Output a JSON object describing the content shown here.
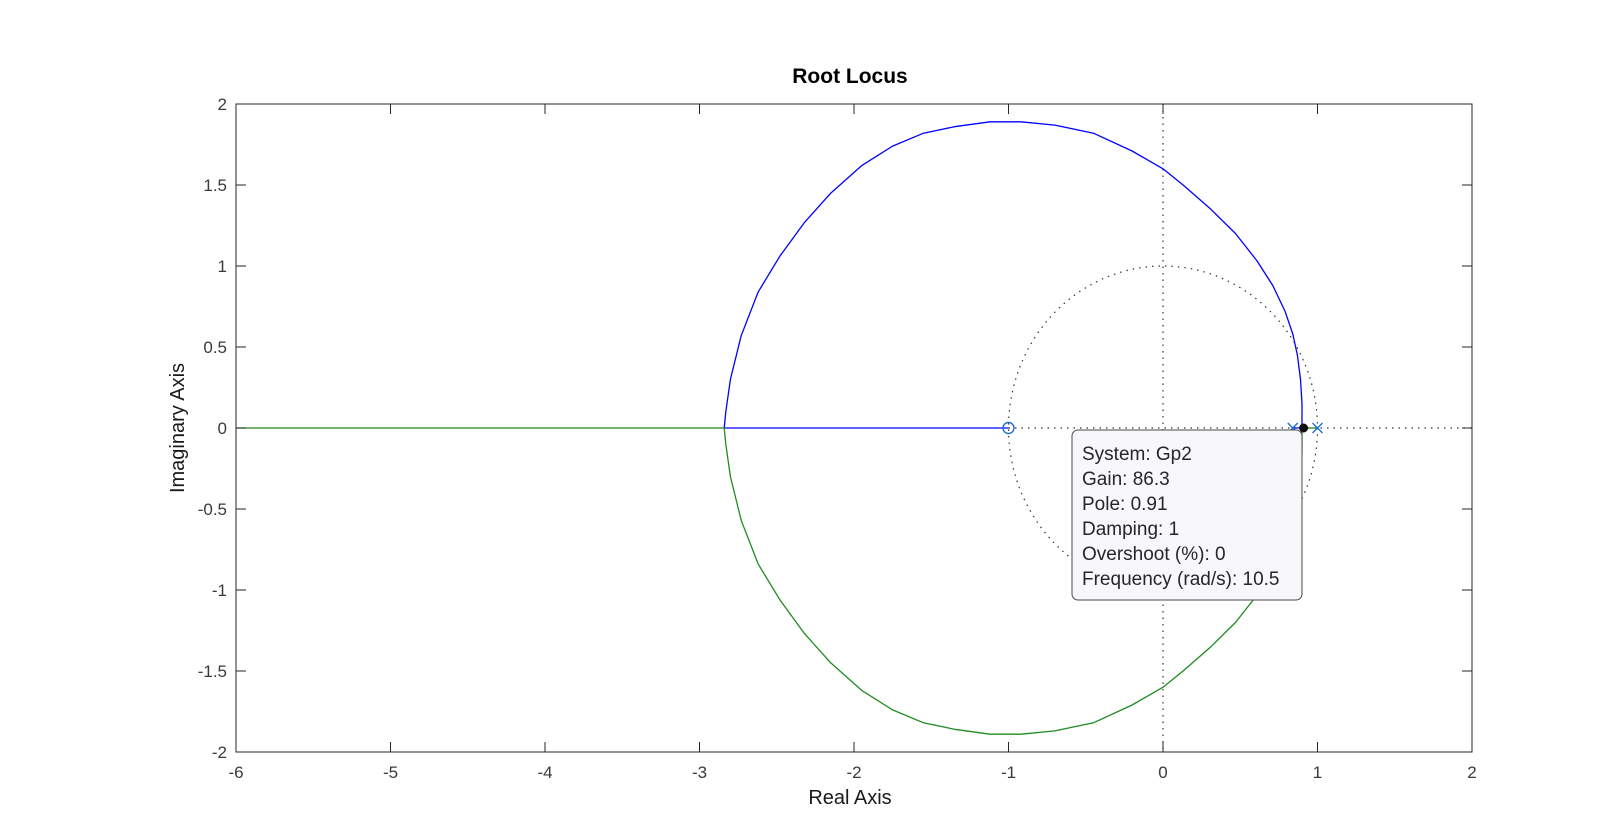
{
  "chart_data": {
    "type": "scatter",
    "title": "Root Locus",
    "xlabel": "Real Axis",
    "ylabel": "Imaginary Axis",
    "xlim": [
      -6,
      2
    ],
    "ylim": [
      -2,
      2
    ],
    "xticks": [
      -6,
      -5,
      -4,
      -3,
      -2,
      -1,
      0,
      1,
      2
    ],
    "yticks": [
      -2,
      -1.5,
      -1,
      -0.5,
      0,
      0.5,
      1,
      1.5,
      2
    ],
    "xtick_labels": [
      "-6",
      "-5",
      "-4",
      "-3",
      "-2",
      "-1",
      "0",
      "1",
      "2"
    ],
    "ytick_labels": [
      "-2",
      "-1.5",
      "-1",
      "-0.5",
      "0",
      "0.5",
      "1",
      "1.5",
      "2"
    ],
    "grid": false,
    "unit_circle": true,
    "poles": [
      [
        0.84,
        0
      ],
      [
        1.0,
        0
      ]
    ],
    "zeros": [
      [
        -1.0,
        0
      ]
    ],
    "series": [
      {
        "color": "#0000ff",
        "points": [
          [
            0.84,
            0
          ],
          [
            0.86,
            0
          ],
          [
            0.9,
            0
          ],
          [
            0.9,
            0.15
          ],
          [
            0.89,
            0.3
          ],
          [
            0.87,
            0.45
          ],
          [
            0.84,
            0.58
          ],
          [
            0.79,
            0.72
          ],
          [
            0.71,
            0.88
          ],
          [
            0.61,
            1.03
          ],
          [
            0.47,
            1.2
          ],
          [
            0.31,
            1.35
          ],
          [
            0.13,
            1.5
          ],
          [
            0.0,
            1.6
          ],
          [
            -0.2,
            1.71
          ],
          [
            -0.45,
            1.82
          ],
          [
            -0.7,
            1.87
          ],
          [
            -0.92,
            1.89
          ],
          [
            -1.12,
            1.89
          ],
          [
            -1.35,
            1.86
          ],
          [
            -1.55,
            1.82
          ],
          [
            -1.75,
            1.74
          ],
          [
            -1.95,
            1.62
          ],
          [
            -2.15,
            1.45
          ],
          [
            -2.32,
            1.27
          ],
          [
            -2.48,
            1.06
          ],
          [
            -2.62,
            0.84
          ],
          [
            -2.73,
            0.57
          ],
          [
            -2.8,
            0.3
          ],
          [
            -2.83,
            0.1
          ],
          [
            -2.84,
            0
          ],
          [
            -2.5,
            0
          ],
          [
            -2.0,
            0
          ],
          [
            -1.5,
            0
          ],
          [
            -1.0,
            0
          ]
        ]
      },
      {
        "color": "#1f8a1f",
        "points": [
          [
            1.0,
            0
          ],
          [
            0.95,
            0
          ],
          [
            0.9,
            0
          ],
          [
            0.9,
            -0.15
          ],
          [
            0.89,
            -0.3
          ],
          [
            0.87,
            -0.45
          ],
          [
            0.84,
            -0.58
          ],
          [
            0.79,
            -0.72
          ],
          [
            0.71,
            -0.88
          ],
          [
            0.61,
            -1.03
          ],
          [
            0.47,
            -1.2
          ],
          [
            0.31,
            -1.35
          ],
          [
            0.13,
            -1.5
          ],
          [
            0.0,
            -1.6
          ],
          [
            -0.2,
            -1.71
          ],
          [
            -0.45,
            -1.82
          ],
          [
            -0.7,
            -1.87
          ],
          [
            -0.92,
            -1.89
          ],
          [
            -1.12,
            -1.89
          ],
          [
            -1.35,
            -1.86
          ],
          [
            -1.55,
            -1.82
          ],
          [
            -1.75,
            -1.74
          ],
          [
            -1.95,
            -1.62
          ],
          [
            -2.15,
            -1.45
          ],
          [
            -2.32,
            -1.27
          ],
          [
            -2.48,
            -1.06
          ],
          [
            -2.62,
            -0.84
          ],
          [
            -2.73,
            -0.57
          ],
          [
            -2.8,
            -0.3
          ],
          [
            -2.83,
            -0.1
          ],
          [
            -2.84,
            0
          ],
          [
            -3.5,
            0
          ],
          [
            -4.5,
            0
          ],
          [
            -5.5,
            0
          ],
          [
            -6,
            0
          ]
        ]
      }
    ],
    "selected_point": [
      0.91,
      0
    ],
    "datatip": {
      "lines": [
        "System: Gp2",
        "Gain: 86.3",
        "Pole: 0.91",
        "Damping: 1",
        "Overshoot (%): 0",
        "Frequency (rad/s): 10.5"
      ]
    }
  }
}
